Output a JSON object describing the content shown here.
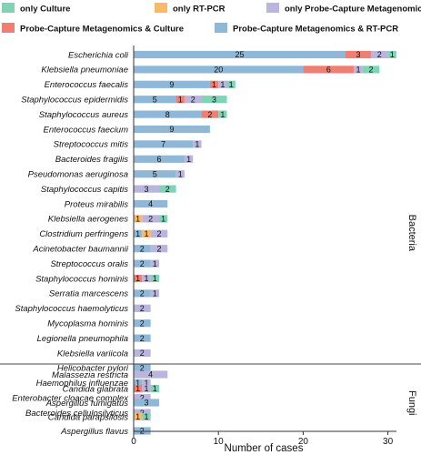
{
  "colors": {
    "only_culture": "#7fd4b6",
    "only_rtpcr": "#f7b96a",
    "only_probe": "#b9b5dd",
    "probe_culture": "#ee7f73",
    "probe_rtpcr": "#8fb8d8"
  },
  "chart_data": {
    "type": "bar",
    "orientation": "horizontal",
    "stacked": true,
    "xlabel": "Number of cases",
    "xlim": [
      0,
      31
    ],
    "xticks": [
      0,
      10,
      20,
      30
    ],
    "legend": {
      "placement": "top",
      "entries": [
        {
          "key": "only_culture",
          "label": "only Culture"
        },
        {
          "key": "only_rtpcr",
          "label": "only RT-PCR"
        },
        {
          "key": "only_probe",
          "label": "only Probe-Capture Metagenomics"
        },
        {
          "key": "probe_culture",
          "label": "Probe-Capture Metagenomics & Culture"
        },
        {
          "key": "probe_rtpcr",
          "label": "Probe-Capture Metagenomics & RT-PCR"
        }
      ]
    },
    "stack_order": [
      "probe_rtpcr",
      "probe_culture",
      "only_rtpcr",
      "only_probe",
      "only_culture"
    ],
    "groups": [
      {
        "name": "Bacteria",
        "rows": [
          {
            "category": "Escherichia coli",
            "probe_rtpcr": 25,
            "probe_culture": 3,
            "only_rtpcr": 0,
            "only_probe": 2,
            "only_culture": 1
          },
          {
            "category": "Klebsiella pneumoniae",
            "probe_rtpcr": 20,
            "probe_culture": 6,
            "only_rtpcr": 0,
            "only_probe": 1,
            "only_culture": 2
          },
          {
            "category": "Enterococcus faecalis",
            "probe_rtpcr": 9,
            "probe_culture": 1,
            "only_rtpcr": 0,
            "only_probe": 1,
            "only_culture": 1
          },
          {
            "category": "Staphylococcus epidermidis",
            "probe_rtpcr": 5,
            "probe_culture": 1,
            "only_rtpcr": 0,
            "only_probe": 2,
            "only_culture": 3
          },
          {
            "category": "Staphylococcus aureus",
            "probe_rtpcr": 8,
            "probe_culture": 2,
            "only_rtpcr": 0,
            "only_probe": 0,
            "only_culture": 1
          },
          {
            "category": "Enterococcus faecium",
            "probe_rtpcr": 9,
            "probe_culture": 0,
            "only_rtpcr": 0,
            "only_probe": 0,
            "only_culture": 0
          },
          {
            "category": "Streptococcus mitis",
            "probe_rtpcr": 7,
            "probe_culture": 0,
            "only_rtpcr": 0,
            "only_probe": 1,
            "only_culture": 0
          },
          {
            "category": "Bacteroides fragilis",
            "probe_rtpcr": 6,
            "probe_culture": 0,
            "only_rtpcr": 0,
            "only_probe": 1,
            "only_culture": 0
          },
          {
            "category": "Pseudomonas aeruginosa",
            "probe_rtpcr": 5,
            "probe_culture": 0,
            "only_rtpcr": 0,
            "only_probe": 1,
            "only_culture": 0
          },
          {
            "category": "Staphylococcus capitis",
            "probe_rtpcr": 0,
            "probe_culture": 0,
            "only_rtpcr": 0,
            "only_probe": 3,
            "only_culture": 2
          },
          {
            "category": "Proteus mirabilis",
            "probe_rtpcr": 4,
            "probe_culture": 0,
            "only_rtpcr": 0,
            "only_probe": 0,
            "only_culture": 0
          },
          {
            "category": "Klebsiella aerogenes",
            "probe_rtpcr": 0,
            "probe_culture": 0,
            "only_rtpcr": 1,
            "only_probe": 2,
            "only_culture": 1
          },
          {
            "category": "Clostridium perfringens",
            "probe_rtpcr": 1,
            "probe_culture": 0,
            "only_rtpcr": 1,
            "only_probe": 2,
            "only_culture": 0
          },
          {
            "category": "Acinetobacter baumannii",
            "probe_rtpcr": 2,
            "probe_culture": 0,
            "only_rtpcr": 0,
            "only_probe": 2,
            "only_culture": 0
          },
          {
            "category": "Streptococcus oralis",
            "probe_rtpcr": 2,
            "probe_culture": 0,
            "only_rtpcr": 0,
            "only_probe": 1,
            "only_culture": 0
          },
          {
            "category": "Staphylococcus hominis",
            "probe_rtpcr": 0,
            "probe_culture": 1,
            "only_rtpcr": 0,
            "only_probe": 1,
            "only_culture": 1
          },
          {
            "category": "Serratia marcescens",
            "probe_rtpcr": 2,
            "probe_culture": 0,
            "only_rtpcr": 0,
            "only_probe": 1,
            "only_culture": 0
          },
          {
            "category": "Staphylococcus haemolyticus",
            "probe_rtpcr": 0,
            "probe_culture": 0,
            "only_rtpcr": 0,
            "only_probe": 2,
            "only_culture": 0
          },
          {
            "category": "Mycoplasma hominis",
            "probe_rtpcr": 2,
            "probe_culture": 0,
            "only_rtpcr": 0,
            "only_probe": 0,
            "only_culture": 0
          },
          {
            "category": "Legionella pneumophila",
            "probe_rtpcr": 2,
            "probe_culture": 0,
            "only_rtpcr": 0,
            "only_probe": 0,
            "only_culture": 0
          },
          {
            "category": "Klebsiella variicola",
            "probe_rtpcr": 0,
            "probe_culture": 0,
            "only_rtpcr": 0,
            "only_probe": 2,
            "only_culture": 0
          },
          {
            "category": "Helicobacter pylori",
            "probe_rtpcr": 2,
            "probe_culture": 0,
            "only_rtpcr": 0,
            "only_probe": 0,
            "only_culture": 0
          },
          {
            "category": "Haemophilus influenzae",
            "probe_rtpcr": 1,
            "probe_culture": 0,
            "only_rtpcr": 0,
            "only_probe": 1,
            "only_culture": 0
          },
          {
            "category": "Enterobacter cloacae complex",
            "probe_rtpcr": 0,
            "probe_culture": 0,
            "only_rtpcr": 0,
            "only_probe": 2,
            "only_culture": 0
          },
          {
            "category": "Bacteroides cellulosilyticus",
            "probe_rtpcr": 0,
            "probe_culture": 0,
            "only_rtpcr": 0,
            "only_probe": 2,
            "only_culture": 0
          }
        ]
      },
      {
        "name": "Fungi",
        "rows": [
          {
            "category": "Malassezia restricta",
            "probe_rtpcr": 0,
            "probe_culture": 0,
            "only_rtpcr": 0,
            "only_probe": 4,
            "only_culture": 0
          },
          {
            "category": "Candida glabrata",
            "probe_rtpcr": 0,
            "probe_culture": 1,
            "only_rtpcr": 0,
            "only_probe": 1,
            "only_culture": 1
          },
          {
            "category": "Aspergillus fumigatus",
            "probe_rtpcr": 3,
            "probe_culture": 0,
            "only_rtpcr": 0,
            "only_probe": 0,
            "only_culture": 0
          },
          {
            "category": "Candida parapsilosis",
            "probe_rtpcr": 0,
            "probe_culture": 0,
            "only_rtpcr": 1,
            "only_probe": 0,
            "only_culture": 1
          },
          {
            "category": "Aspergillus flavus",
            "probe_rtpcr": 2,
            "probe_culture": 0,
            "only_rtpcr": 0,
            "only_probe": 0,
            "only_culture": 0
          }
        ]
      }
    ]
  }
}
